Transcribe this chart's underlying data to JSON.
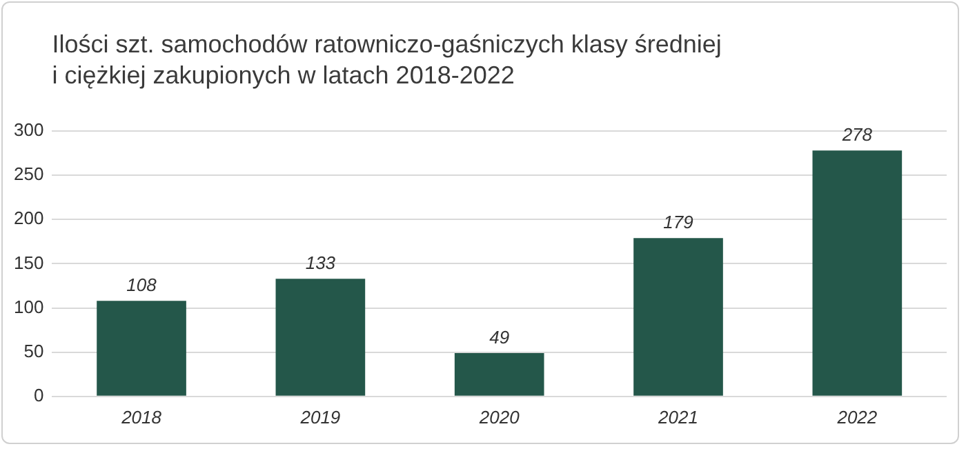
{
  "chart_data": {
    "type": "bar",
    "title": "Ilości szt. samochodów ratowniczo-gaśniczych klasy średniej\ni ciężkiej zakupionych w latach 2018-2022",
    "categories": [
      "2018",
      "2019",
      "2020",
      "2021",
      "2022"
    ],
    "values": [
      108,
      133,
      49,
      179,
      278
    ],
    "color": "#24574a",
    "ylim": [
      0,
      300
    ],
    "yticks": [
      0,
      50,
      100,
      150,
      200,
      250,
      300
    ],
    "grid": "y",
    "data_labels": true
  }
}
